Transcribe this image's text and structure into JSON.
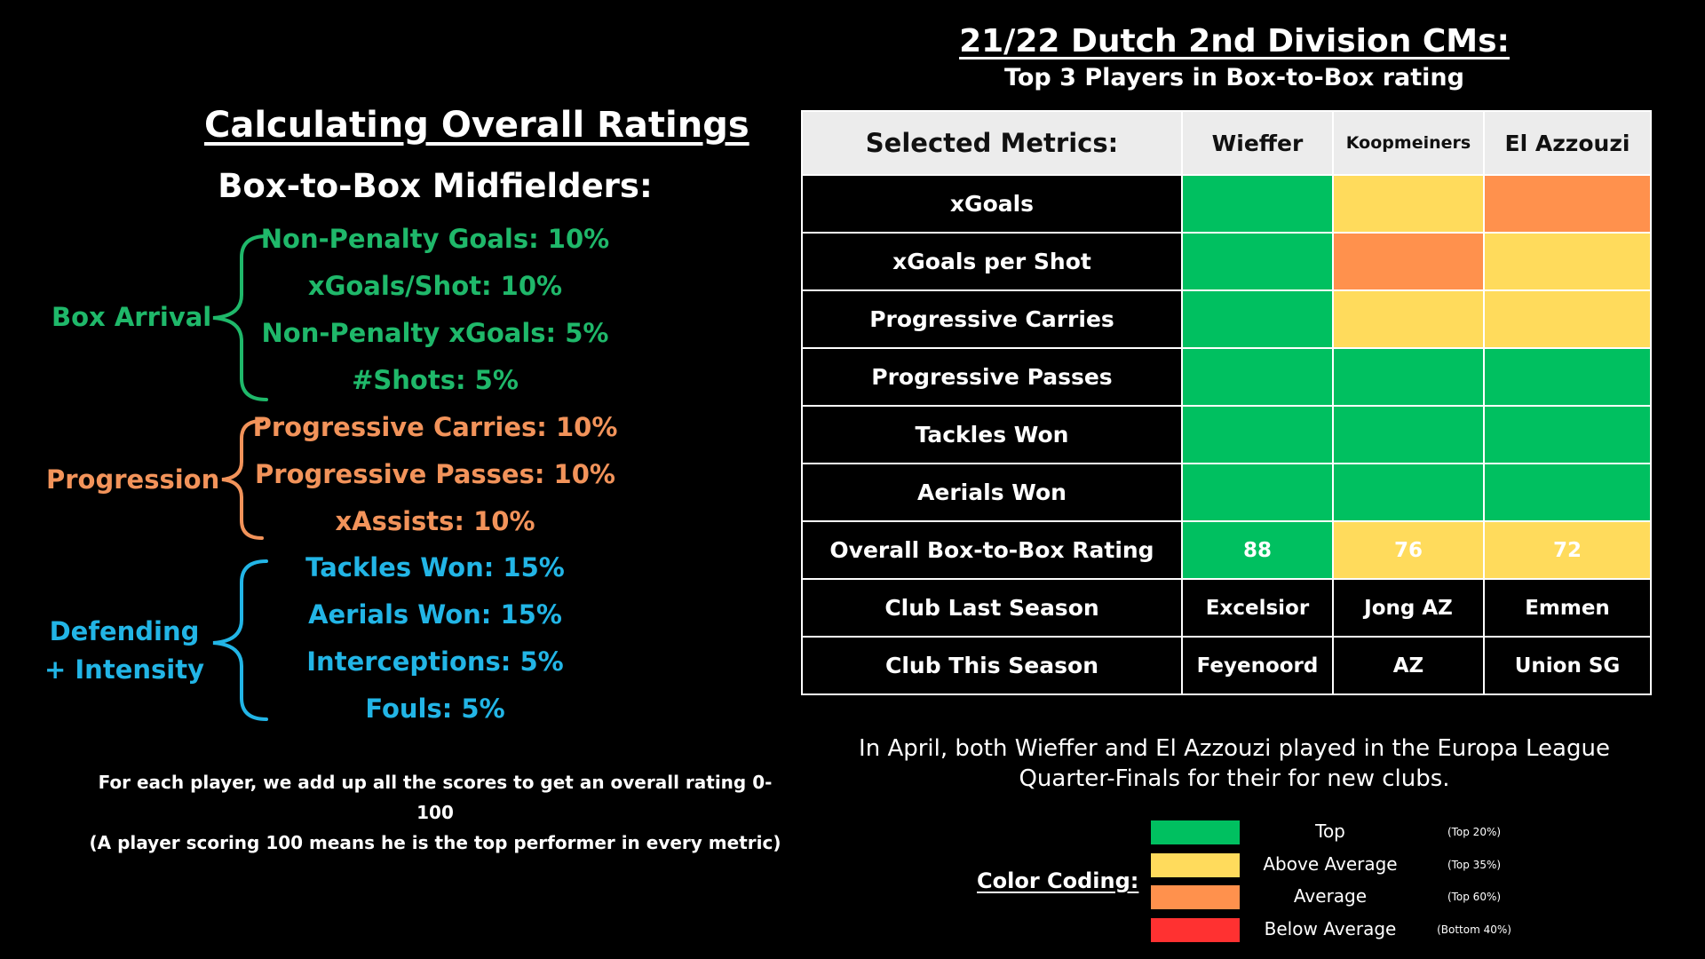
{
  "left": {
    "title": "Calculating Overall Ratings",
    "subtitle": "Box-to-Box Midfielders:",
    "groups": [
      {
        "label": "Box Arrival",
        "color": "#1fb86a",
        "metrics": [
          "Non-Penalty Goals: 10%",
          "xGoals/Shot: 10%",
          "Non-Penalty xGoals: 5%",
          "#Shots: 5%"
        ]
      },
      {
        "label": "Progression",
        "color": "#f2935a",
        "metrics": [
          "Progressive Carries: 10%",
          "Progressive Passes: 10%",
          "xAssists: 10%"
        ]
      },
      {
        "label_line1": "Defending",
        "label_line2": "+ Intensity",
        "color": "#22b5e6",
        "metrics": [
          "Tackles Won: 15%",
          "Aerials Won: 15%",
          "Interceptions: 5%",
          "Fouls: 5%"
        ]
      }
    ],
    "footnote_line1": "For each player, we add up all the scores to get an overall rating 0-100",
    "footnote_line2": "(A player scoring 100 means he is the top performer in every metric)"
  },
  "right": {
    "title": "21/22 Dutch 2nd Division CMs:",
    "subtitle": "Top 3 Players in Box-to-Box rating",
    "table": {
      "header_label": "Selected Metrics:",
      "players": [
        "Wieffer",
        "Koopmeiners",
        "El Azzouzi"
      ],
      "rows": [
        {
          "label": "xGoals",
          "levels": [
            "top",
            "above",
            "average"
          ]
        },
        {
          "label": "xGoals per Shot",
          "levels": [
            "top",
            "average",
            "above"
          ]
        },
        {
          "label": "Progressive Carries",
          "levels": [
            "top",
            "above",
            "above"
          ]
        },
        {
          "label": "Progressive Passes",
          "levels": [
            "top",
            "top",
            "top"
          ]
        },
        {
          "label": "Tackles Won",
          "levels": [
            "top",
            "top",
            "top"
          ]
        },
        {
          "label": "Aerials Won",
          "levels": [
            "top",
            "top",
            "top"
          ]
        }
      ],
      "rating_row": {
        "label": "Overall Box-to-Box Rating",
        "values": [
          "88",
          "76",
          "72"
        ],
        "levels": [
          "top",
          "above",
          "above"
        ]
      },
      "club_last": {
        "label": "Club Last Season",
        "values": [
          "Excelsior",
          "Jong AZ",
          "Emmen"
        ]
      },
      "club_this": {
        "label": "Club This Season",
        "values": [
          "Feyenoord",
          "AZ",
          "Union SG"
        ]
      }
    },
    "note_line1": "In April, both Wieffer and El Azzouzi played in the Europa League",
    "note_line2": "Quarter-Finals for their for new clubs.",
    "legend": {
      "title": "Color Coding:",
      "items": [
        {
          "level": "top",
          "label": "Top",
          "range": "(Top 20%)",
          "color": "#00c060"
        },
        {
          "level": "above",
          "label": "Above Average",
          "range": "(Top 35%)",
          "color": "#ffdb5c"
        },
        {
          "level": "average",
          "label": "Average",
          "range": "(Top 60%)",
          "color": "#ff914d"
        },
        {
          "level": "below",
          "label": "Below Average",
          "range": "(Bottom 40%)",
          "color": "#ff3131"
        }
      ]
    }
  }
}
